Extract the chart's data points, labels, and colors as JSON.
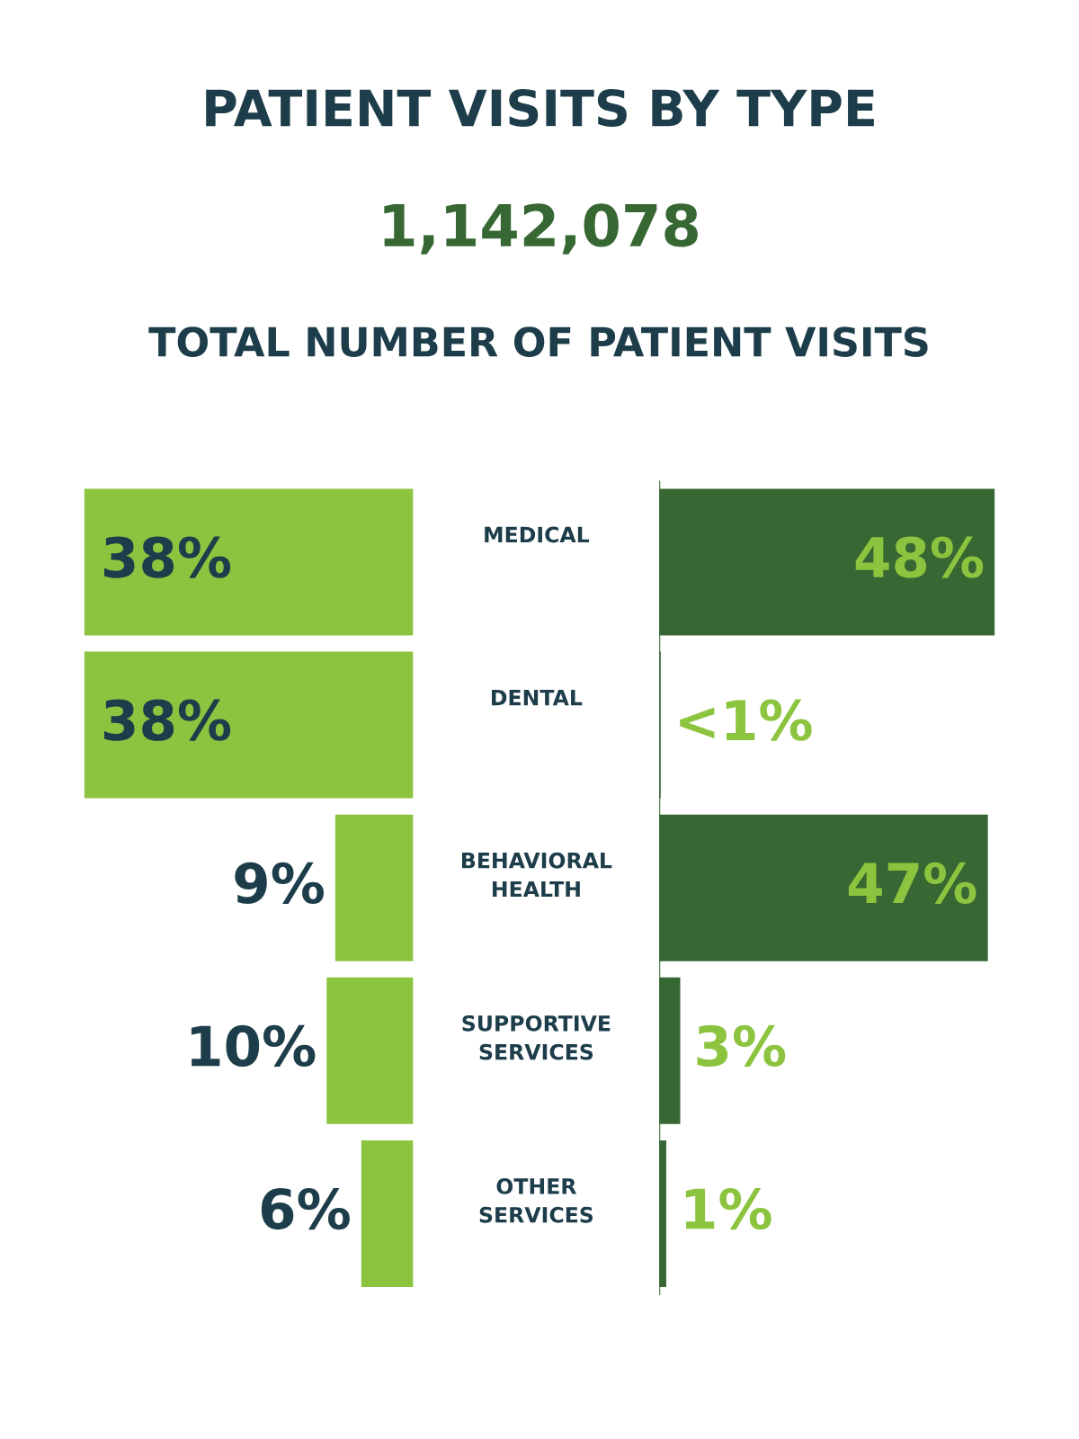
{
  "chart_data": [
    {
      "type": "bar",
      "orientation": "horizontal",
      "title": "PATIENT VISITS BY TYPE",
      "annotations": [
        "1,142,078",
        "TOTAL NUMBER OF PATIENT VISITS"
      ],
      "categories": [
        "MEDICAL",
        "DENTAL",
        "BEHAVIORAL HEALTH",
        "SUPPORTIVE SERVICES",
        "OTHER SERVICES"
      ],
      "values": [
        38,
        38,
        9,
        10,
        6
      ],
      "value_labels": [
        "38%",
        "38%",
        "9%",
        "10%",
        "6%"
      ],
      "color": "#8cc43f"
    },
    {
      "type": "bar",
      "orientation": "horizontal",
      "categories": [
        null,
        null,
        null,
        null,
        null
      ],
      "values": [
        48,
        0.2,
        47,
        3,
        1
      ],
      "value_labels": [
        "48%",
        "<1%",
        "47%",
        "3%",
        "1%"
      ],
      "color": "#376732"
    }
  ]
}
